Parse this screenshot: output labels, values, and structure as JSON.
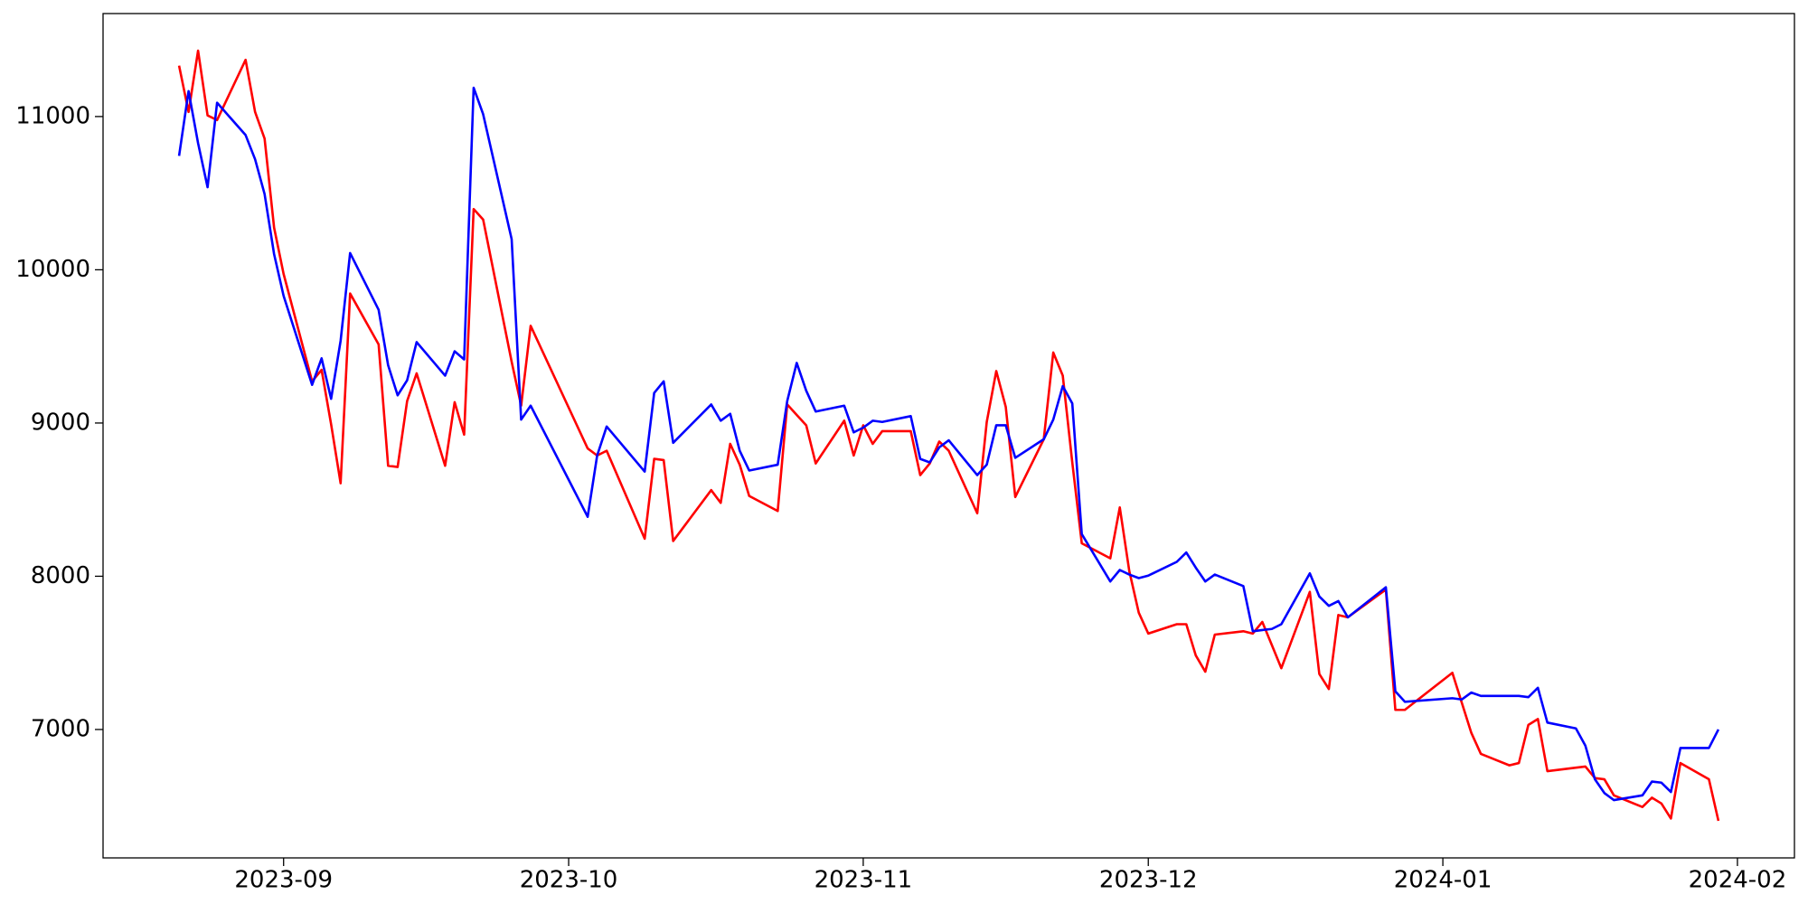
{
  "chart_data": {
    "type": "line",
    "x": [
      19590,
      19591,
      19592,
      19593,
      19594,
      19597,
      19598,
      19599,
      19600,
      19601,
      19604,
      19605,
      19606,
      19607,
      19608,
      19611,
      19612,
      19613,
      19614,
      19615,
      19618,
      19619,
      19620,
      19621,
      19622,
      19625,
      19626,
      19627,
      19633,
      19634,
      19635,
      19639,
      19640,
      19641,
      19642,
      19646,
      19647,
      19648,
      19649,
      19650,
      19653,
      19654,
      19655,
      19656,
      19657,
      19660,
      19661,
      19662,
      19663,
      19664,
      19667,
      19668,
      19669,
      19670,
      19671,
      19674,
      19675,
      19676,
      19677,
      19678,
      19681,
      19682,
      19683,
      19684,
      19685,
      19688,
      19689,
      19690,
      19691,
      19692,
      19695,
      19696,
      19697,
      19698,
      19699,
      19702,
      19703,
      19704,
      19705,
      19706,
      19709,
      19710,
      19711,
      19712,
      19713,
      19717,
      19718,
      19719,
      19724,
      19725,
      19726,
      19727,
      19730,
      19731,
      19732,
      19733,
      19734,
      19737,
      19738,
      19739,
      19740,
      19741,
      19744,
      19745,
      19746,
      19747,
      19748,
      19751,
      19752
    ],
    "series": [
      {
        "color": "#ff0000",
        "values": [
          11332,
          11030,
          11430,
          11007,
          10977,
          11370,
          11030,
          10856,
          10275,
          9973,
          9272,
          9347,
          8992,
          8607,
          9845,
          9513,
          8721,
          8713,
          9143,
          9324,
          8721,
          9136,
          8924,
          10396,
          10328,
          9400,
          9113,
          9634,
          8834,
          8788,
          8819,
          8245,
          8766,
          8758,
          8230,
          8562,
          8479,
          8864,
          8728,
          8524,
          8426,
          9121,
          9053,
          8985,
          8736,
          9015,
          8788,
          8985,
          8864,
          8947,
          8947,
          8660,
          8736,
          8879,
          8819,
          8411,
          9007,
          9339,
          9105,
          8517,
          8894,
          9460,
          9309,
          8743,
          8215,
          8117,
          8449,
          8034,
          7762,
          7626,
          7687,
          7687,
          7483,
          7377,
          7619,
          7641,
          7626,
          7702,
          7551,
          7400,
          7898,
          7362,
          7264,
          7747,
          7732,
          7913,
          7128,
          7128,
          7370,
          7173,
          6977,
          6841,
          6766,
          6781,
          7030,
          7068,
          6728,
          6751,
          6758,
          6683,
          6675,
          6570,
          6494,
          6555,
          6517,
          6419,
          6781,
          6675,
          6404
        ]
      },
      {
        "color": "#0000ff",
        "values": [
          10743,
          11166,
          10826,
          10539,
          11090,
          10879,
          10721,
          10494,
          10102,
          9830,
          9249,
          9422,
          9158,
          9536,
          10109,
          9739,
          9377,
          9181,
          9279,
          9528,
          9309,
          9468,
          9415,
          11188,
          11015,
          10200,
          9022,
          9113,
          8388,
          8788,
          8977,
          8683,
          9196,
          9272,
          8871,
          9121,
          9015,
          9060,
          8819,
          8690,
          8728,
          9143,
          9392,
          9211,
          9075,
          9113,
          8939,
          8970,
          9015,
          9007,
          9045,
          8766,
          8743,
          8841,
          8887,
          8660,
          8728,
          8985,
          8985,
          8773,
          8894,
          9022,
          9241,
          9128,
          8275,
          7966,
          8041,
          8011,
          7988,
          8004,
          8094,
          8155,
          8056,
          7966,
          8011,
          7936,
          7641,
          7649,
          7656,
          7687,
          8019,
          7868,
          7807,
          7838,
          7732,
          7928,
          7249,
          7181,
          7204,
          7196,
          7241,
          7219,
          7219,
          7219,
          7211,
          7272,
          7045,
          7007,
          6894,
          6675,
          6585,
          6539,
          6570,
          6660,
          6653,
          6592,
          6879,
          6879,
          7000
        ]
      }
    ],
    "xlim": [
      19582,
      19760
    ],
    "xticks": [
      {
        "value": 19601,
        "label": "2023-09"
      },
      {
        "value": 19631,
        "label": "2023-10"
      },
      {
        "value": 19662,
        "label": "2023-11"
      },
      {
        "value": 19692,
        "label": "2023-12"
      },
      {
        "value": 19723,
        "label": "2024-01"
      },
      {
        "value": 19754,
        "label": "2024-02"
      }
    ],
    "ylim": [
      6162,
      11672
    ],
    "yticks": [
      7000,
      8000,
      9000,
      10000,
      11000
    ],
    "grid": false
  }
}
